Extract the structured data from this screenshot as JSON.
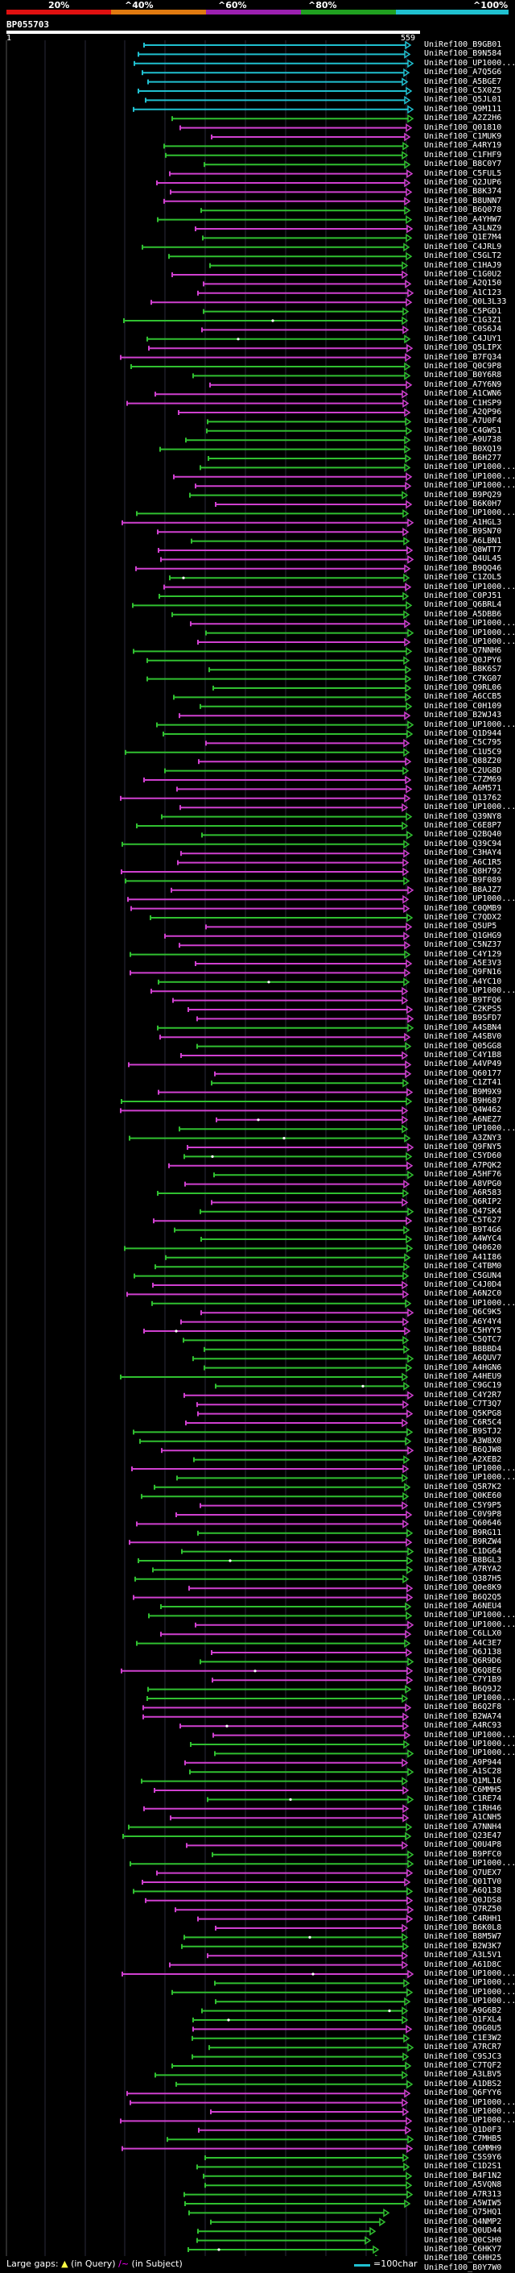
{
  "legend": {
    "labels": [
      "20%",
      "^40%",
      "^60%",
      "^80%",
      "^100%"
    ],
    "colors": [
      "#e01010",
      "#e07a10",
      "#9b20b0",
      "#20a020",
      "#20c0d0"
    ]
  },
  "query": {
    "id": "BP055703",
    "start": "1",
    "end": "559"
  },
  "colors": {
    "cyan": "#20c0d0",
    "green": "#30c030",
    "magenta": "#d040d0"
  },
  "hits": [
    "UniRef100_B9GB01",
    "UniRef100_B9N584",
    "UniRef100_UP1000...",
    "UniRef100_A7Q5G6",
    "UniRef100_A5BGE7",
    "UniRef100_C5X0Z5",
    "UniRef100_Q5JL01",
    "UniRef100_Q9M111",
    "UniRef100_A2Z2H6",
    "UniRef100_Q01810",
    "UniRef100_C1MUK9",
    "UniRef100_A4RY19",
    "UniRef100_C1FHF9",
    "UniRef100_B8C0Y7",
    "UniRef100_C5FUL5",
    "UniRef100_Q2JUP6",
    "UniRef100_B8K374",
    "UniRef100_B8UNN7",
    "UniRef100_B6Q078",
    "UniRef100_A4YHW7",
    "UniRef100_A3LNZ9",
    "UniRef100_Q1E7M4",
    "UniRef100_C4JRL9",
    "UniRef100_C5GLT2",
    "UniRef100_C1HAJ9",
    "UniRef100_C1G0U2",
    "UniRef100_A2Q150",
    "UniRef100_A1C123",
    "UniRef100_Q0L3L33",
    "UniRef100_C5PGD1",
    "UniRef100_C1G3Z1",
    "UniRef100_C0S6J4",
    "UniRef100_C4JUY1",
    "UniRef100_Q5LIPX",
    "UniRef100_B7FQ34",
    "UniRef100_Q0C9P8",
    "UniRef100_B0Y6R8",
    "UniRef100_A7Y6N9",
    "UniRef100_A1CWN6",
    "UniRef100_C1HSP9",
    "UniRef100_A2QP96",
    "UniRef100_A7U0F4",
    "UniRef100_C4GWS1",
    "UniRef100_A9U738",
    "UniRef100_B0XQ19",
    "UniRef100_B6H277",
    "UniRef100_UP1000...",
    "UniRef100_UP1000...",
    "UniRef100_UP1000...",
    "UniRef100_B9PQ29",
    "UniRef100_B6K0H7",
    "UniRef100_UP1000...",
    "UniRef100_A1HGL3",
    "UniRef100_B9SN70",
    "UniRef100_A6LBN1",
    "UniRef100_Q8WTT7",
    "UniRef100_Q4UL45",
    "UniRef100_B9QQ46",
    "UniRef100_C1ZOL5",
    "UniRef100_UP1000...",
    "UniRef100_C0PJ51",
    "UniRef100_Q6BRL4",
    "UniRef100_A5DBB6",
    "UniRef100_UP1000...",
    "UniRef100_UP1000...",
    "UniRef100_UP1000...",
    "UniRef100_Q7NNH6",
    "UniRef100_Q0JPY6",
    "UniRef100_B8K6S7",
    "UniRef100_C7KG07",
    "UniRef100_Q9RL06",
    "UniRef100_A6CCB5",
    "UniRef100_C0H109",
    "UniRef100_B2WJ43",
    "UniRef100_UP1000...",
    "UniRef100_Q1D944",
    "UniRef100_C5C795",
    "UniRef100_C1U5C9",
    "UniRef100_Q88Z20",
    "UniRef100_C2UG8D",
    "UniRef100_C7ZM69",
    "UniRef100_A6M571",
    "UniRef100_Q13762",
    "UniRef100_UP1000...",
    "UniRef100_Q39NY8",
    "UniRef100_C6E8P7",
    "UniRef100_Q2BQ40",
    "UniRef100_Q39C94",
    "UniRef100_C3HAY4",
    "UniRef100_A6C1R5",
    "UniRef100_Q8H792",
    "UniRef100_B9F089",
    "UniRef100_B8AJZ7",
    "UniRef100_UP1000...",
    "UniRef100_C0QMB9",
    "UniRef100_C7QDX2",
    "UniRef100_Q5UP5",
    "UniRef100_Q1GHG9",
    "UniRef100_C5NZ37",
    "UniRef100_C4Y129",
    "UniRef100_A5E3V3",
    "UniRef100_Q9FN16",
    "UniRef100_A4YC10",
    "UniRef100_UP1000...",
    "UniRef100_B9TFQ6",
    "UniRef100_C2KPS5",
    "UniRef100_B9SFD7",
    "UniRef100_A4SBN4",
    "UniRef100_A4SBV0",
    "UniRef100_Q05GG8",
    "UniRef100_C4Y1B8",
    "UniRef100_A4VP49",
    "UniRef100_Q60177",
    "UniRef100_C1ZT41",
    "UniRef100_B9M9X9",
    "UniRef100_B9H687",
    "UniRef100_Q4W462",
    "UniRef100_A6NEZ7",
    "UniRef100_UP1000...",
    "UniRef100_A3ZNY3",
    "UniRef100_Q9FNY5",
    "UniRef100_C5YD60",
    "UniRef100_A7PQK2",
    "UniRef100_A5HF76",
    "UniRef100_A8VPG0",
    "UniRef100_A6R583",
    "UniRef100_Q6RIP2",
    "UniRef100_Q47SK4",
    "UniRef100_C5T627",
    "UniRef100_B9T4G6",
    "UniRef100_A4WYC4",
    "UniRef100_Q40620",
    "UniRef100_A41I86",
    "UniRef100_C4TBM0",
    "UniRef100_C5GUN4",
    "UniRef100_C4J0D4",
    "UniRef100_A6N2C0",
    "UniRef100_UP1000...",
    "UniRef100_Q6C9K5",
    "UniRef100_A6Y4Y4",
    "UniRef100_C5HYY5",
    "UniRef100_C5QTC7",
    "UniRef100_B8BBD4",
    "UniRef100_A6QUV7",
    "UniRef100_A4HGN6",
    "UniRef100_A4HEU9",
    "UniRef100_C9GC19",
    "UniRef100_C4Y2R7",
    "UniRef100_C7T3Q7",
    "UniRef100_Q5KPG8",
    "UniRef100_C6R5C4",
    "UniRef100_B9STJ2",
    "UniRef100_A3W8X0",
    "UniRef100_B6QJW8",
    "UniRef100_A2XEB2",
    "UniRef100_UP1000...",
    "UniRef100_UP1000...",
    "UniRef100_Q5R7K2",
    "UniRef100_Q0KE60",
    "UniRef100_C5Y9P5",
    "UniRef100_C0V9P8",
    "UniRef100_Q60646",
    "UniRef100_B9RG11",
    "UniRef100_B9RZW4",
    "UniRef100_C1DG64",
    "UniRef100_B8BGL3",
    "UniRef100_A7RYA2",
    "UniRef100_Q387H5",
    "UniRef100_Q0e8K9",
    "UniRef100_B6Q2Q5",
    "UniRef100_A6NEU4",
    "UniRef100_UP1000...",
    "UniRef100_UP1000...",
    "UniRef100_C6LLX0",
    "UniRef100_A4C3E7",
    "UniRef100_Q6J138",
    "UniRef100_Q6R9D6",
    "UniRef100_Q6Q8E6",
    "UniRef100_C7Y1B9",
    "UniRef100_B6Q9J2",
    "UniRef100_UP1000...",
    "UniRef100_B6Q2F8",
    "UniRef100_B2WA74",
    "UniRef100_A4RC93",
    "UniRef100_UP1000...",
    "UniRef100_UP1000...",
    "UniRef100_UP1000...",
    "UniRef100_A9P944",
    "UniRef100_A1SC28",
    "UniRef100_Q1ML16",
    "UniRef100_C6MMH5",
    "UniRef100_C1RE74",
    "UniRef100_C1RH46",
    "UniRef100_A1CNH5",
    "UniRef100_A7NNH4",
    "UniRef100_Q23E47",
    "UniRef100_Q0U4P8",
    "UniRef100_B9PFC0",
    "UniRef100_UP1000...",
    "UniRef100_Q7UEX7",
    "UniRef100_Q01TV0",
    "UniRef100_A6Q138",
    "UniRef100_Q0JDS8",
    "UniRef100_Q7RZ50",
    "UniRef100_C4RHH1",
    "UniRef100_B6K0L8",
    "UniRef100_B8M5W7",
    "UniRef100_B2W3K7",
    "UniRef100_A3L5V1",
    "UniRef100_A61D8C",
    "UniRef100_UP1000...",
    "UniRef100_UP1000...",
    "UniRef100_UP1000...",
    "UniRef100_UP1000...",
    "UniRef100_A9G6B2",
    "UniRef100_Q1FXL4",
    "UniRef100_Q9G0U5",
    "UniRef100_C1E3W2",
    "UniRef100_A7RCR7",
    "UniRef100_C9SJC3",
    "UniRef100_C7TQF2",
    "UniRef100_A3LBV5",
    "UniRef100_A1DBS2",
    "UniRef100_Q6FYY6",
    "UniRef100_UP1000...",
    "UniRef100_UP1000...",
    "UniRef100_UP1000...",
    "UniRef100_Q1D0F3",
    "UniRef100_C7MHB5",
    "UniRef100_C6MMH9",
    "UniRef100_C5S9Y6",
    "UniRef100_C1D2S1",
    "UniRef100_B4F1N2",
    "UniRef100_A5VQN8",
    "UniRef100_A7R313",
    "UniRef100_A5WIW5",
    "UniRef100_Q75HQ1",
    "UniRef100_Q4NMP2",
    "UniRef100_Q0UD44",
    "UniRef100_Q0CSH0",
    "UniRef100_C6HKY7",
    "UniRef100_C6HH25",
    "UniRef100_B0Y7W0"
  ],
  "footer": {
    "large_gaps_label": "Large gaps:",
    "in_query": "(in Query)",
    "in_subject": "(in Subject)",
    "scale_label": "=100char"
  }
}
